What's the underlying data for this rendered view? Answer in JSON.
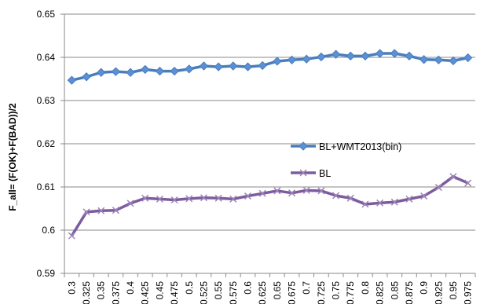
{
  "chart_data": {
    "type": "line",
    "title": "",
    "xlabel": "",
    "ylabel": "F_all= (F(OK)+F(BAD))/2",
    "ylim": [
      0.59,
      0.65
    ],
    "yticks": [
      "0.59",
      "0.6",
      "0.61",
      "0.62",
      "0.63",
      "0.64",
      "0.65"
    ],
    "grid": "horizontal",
    "legend": "right",
    "categories": [
      "0.3",
      "0.325",
      "0.35",
      "0.375",
      "0.4",
      "0.425",
      "0.45",
      "0.475",
      "0.5",
      "0.525",
      "0.55",
      "0.575",
      "0.6",
      "0.625",
      "0.65",
      "0.675",
      "0.7",
      "0.725",
      "0.75",
      "0.775",
      "0.8",
      "0.825",
      "0.85",
      "0.875",
      "0.9",
      "0.925",
      "0.95",
      "0.975"
    ],
    "series": [
      {
        "name": "BL+WMT2013(bin)",
        "color": "#4a7ebb",
        "marker": "diamond",
        "values": [
          0.6347,
          0.6355,
          0.6365,
          0.6367,
          0.6365,
          0.6372,
          0.6368,
          0.6368,
          0.6373,
          0.638,
          0.6378,
          0.638,
          0.6378,
          0.6381,
          0.6391,
          0.6394,
          0.6396,
          0.6401,
          0.6407,
          0.6403,
          0.6403,
          0.6409,
          0.6409,
          0.6403,
          0.6395,
          0.6394,
          0.6392,
          0.6399
        ]
      },
      {
        "name": "BL",
        "color": "#7e5b9e",
        "marker": "x",
        "values": [
          0.5987,
          0.6042,
          0.6045,
          0.6046,
          0.6062,
          0.6074,
          0.6072,
          0.607,
          0.6073,
          0.6075,
          0.6074,
          0.6072,
          0.6079,
          0.6085,
          0.6091,
          0.6086,
          0.6092,
          0.6091,
          0.608,
          0.6074,
          0.606,
          0.6063,
          0.6065,
          0.6072,
          0.6079,
          0.6099,
          0.6124,
          0.6109
        ]
      }
    ]
  }
}
